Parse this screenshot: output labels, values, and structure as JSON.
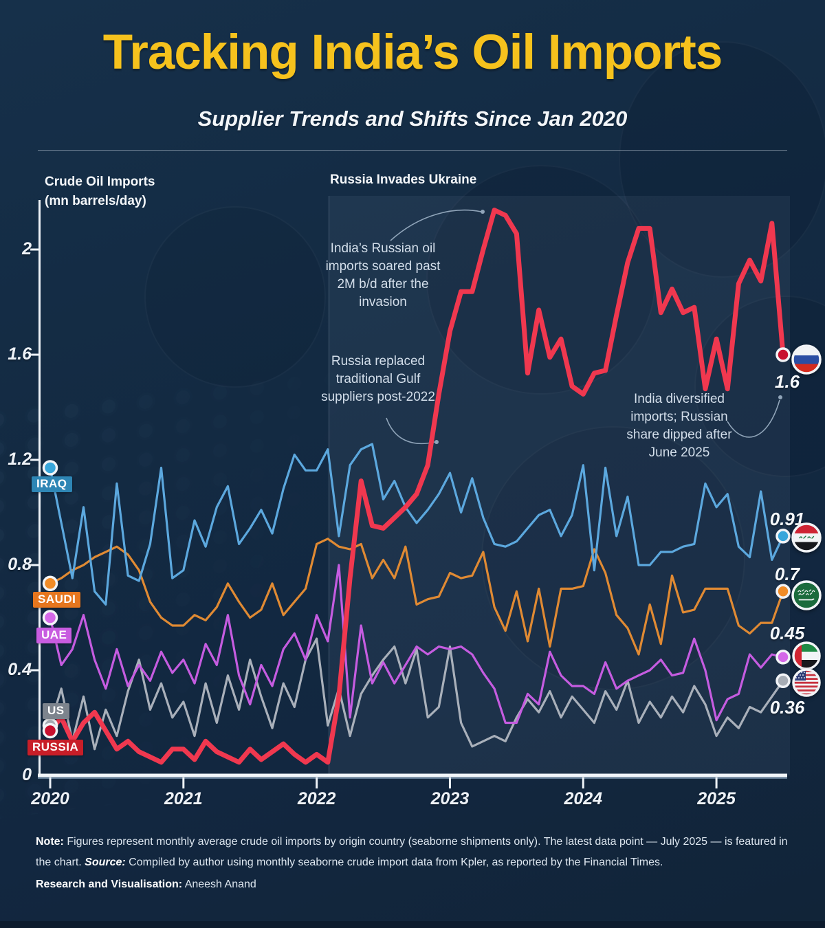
{
  "header": {
    "title": "Tracking India’s Oil Imports",
    "subtitle": "Supplier Trends and Shifts Since Jan 2020"
  },
  "chart": {
    "axis_title": "Crude Oil Imports\n(mn barrels/day)",
    "event_label": "Russia Invades Ukraine",
    "y_ticks": [
      {
        "label": "2",
        "value": 2.0
      },
      {
        "label": "1.6",
        "value": 1.6
      },
      {
        "label": "1.2",
        "value": 1.2
      },
      {
        "label": "0.8",
        "value": 0.8
      },
      {
        "label": "0.4",
        "value": 0.4
      },
      {
        "label": "0",
        "value": 0.0
      }
    ],
    "x_ticks": [
      "2020",
      "2021",
      "2022",
      "2023",
      "2024",
      "2025"
    ]
  },
  "annotations": {
    "invasion": "India’s Russian oil\nimports soared past\n2M b/d after the\ninvasion",
    "gulf": "Russia replaced\ntraditional Gulf\nsuppliers post-2022",
    "diversified": "India diversified\nimports; Russian\nshare dipped after\nJune 2025"
  },
  "colors": {
    "background": "#132A42",
    "panel_tint": "rgba(190,214,245,0.065)",
    "title_yellow": "#F6C21D",
    "axis_white": "#F2F6FA"
  },
  "chart_data": {
    "type": "line",
    "title": "Crude Oil Imports (mn barrels/day)",
    "x_unit": "month",
    "x_start": "2020-01",
    "x_end": "2025-07",
    "x_tick_years": [
      2020,
      2021,
      2022,
      2023,
      2024,
      2025
    ],
    "ylim": [
      0,
      2.2
    ],
    "grid": false,
    "legend_position": "inline-left-badges",
    "series": [
      {
        "name": "US",
        "badge_label": "US",
        "end_label": "0.36",
        "color": "#A9B0BA",
        "badge_bg": "#7D848D",
        "dot_color": "#A7ADB5",
        "flag": "us-flag-icon",
        "values": [
          0.19,
          0.33,
          0.13,
          0.3,
          0.1,
          0.25,
          0.15,
          0.32,
          0.44,
          0.25,
          0.35,
          0.22,
          0.28,
          0.15,
          0.35,
          0.2,
          0.38,
          0.25,
          0.44,
          0.3,
          0.18,
          0.35,
          0.26,
          0.44,
          0.52,
          0.19,
          0.33,
          0.15,
          0.31,
          0.38,
          0.44,
          0.49,
          0.35,
          0.48,
          0.22,
          0.26,
          0.49,
          0.2,
          0.11,
          0.13,
          0.15,
          0.13,
          0.22,
          0.29,
          0.24,
          0.32,
          0.22,
          0.3,
          0.25,
          0.2,
          0.32,
          0.25,
          0.36,
          0.2,
          0.28,
          0.22,
          0.3,
          0.24,
          0.34,
          0.27,
          0.15,
          0.22,
          0.18,
          0.26,
          0.24,
          0.3,
          0.36
        ]
      },
      {
        "name": "UAE",
        "badge_label": "UAE",
        "end_label": "0.45",
        "color": "#C55CE0",
        "badge_bg": "#C85CE0",
        "dot_color": "#D568E8",
        "flag": "uae-flag-icon",
        "values": [
          0.6,
          0.42,
          0.48,
          0.61,
          0.44,
          0.33,
          0.48,
          0.34,
          0.42,
          0.36,
          0.47,
          0.39,
          0.44,
          0.35,
          0.5,
          0.42,
          0.61,
          0.38,
          0.27,
          0.42,
          0.34,
          0.48,
          0.54,
          0.44,
          0.61,
          0.51,
          0.8,
          0.22,
          0.57,
          0.35,
          0.43,
          0.35,
          0.42,
          0.49,
          0.46,
          0.49,
          0.48,
          0.49,
          0.46,
          0.39,
          0.33,
          0.2,
          0.2,
          0.31,
          0.27,
          0.47,
          0.38,
          0.34,
          0.34,
          0.31,
          0.43,
          0.33,
          0.36,
          0.38,
          0.4,
          0.44,
          0.38,
          0.39,
          0.52,
          0.4,
          0.21,
          0.29,
          0.31,
          0.46,
          0.41,
          0.46,
          0.45
        ]
      },
      {
        "name": "SAUDI",
        "badge_label": "SAUDI",
        "end_label": "0.7",
        "color": "#E08A33",
        "badge_bg": "#E6761E",
        "dot_color": "#F18C27",
        "flag": "saudi-flag-icon",
        "values": [
          0.73,
          0.75,
          0.78,
          0.8,
          0.83,
          0.85,
          0.87,
          0.84,
          0.78,
          0.66,
          0.6,
          0.57,
          0.57,
          0.61,
          0.59,
          0.64,
          0.73,
          0.66,
          0.6,
          0.63,
          0.73,
          0.61,
          0.66,
          0.71,
          0.88,
          0.9,
          0.87,
          0.86,
          0.88,
          0.75,
          0.82,
          0.75,
          0.87,
          0.65,
          0.67,
          0.68,
          0.77,
          0.75,
          0.76,
          0.85,
          0.64,
          0.55,
          0.7,
          0.51,
          0.71,
          0.49,
          0.71,
          0.71,
          0.72,
          0.86,
          0.77,
          0.61,
          0.56,
          0.46,
          0.65,
          0.5,
          0.76,
          0.62,
          0.63,
          0.71,
          0.71,
          0.71,
          0.57,
          0.54,
          0.58,
          0.58,
          0.7
        ]
      },
      {
        "name": "IRAQ",
        "badge_label": "IRAQ",
        "end_label": "0.91",
        "color": "#5CA8DE",
        "badge_bg": "#2E86B5",
        "dot_color": "#38A6DB",
        "flag": "iraq-flag-icon",
        "values": [
          1.17,
          0.96,
          0.75,
          1.02,
          0.7,
          0.65,
          1.11,
          0.76,
          0.74,
          0.88,
          1.17,
          0.75,
          0.78,
          0.97,
          0.87,
          1.02,
          1.1,
          0.88,
          0.94,
          1.01,
          0.92,
          1.09,
          1.22,
          1.16,
          1.16,
          1.24,
          0.91,
          1.18,
          1.24,
          1.26,
          1.05,
          1.12,
          1.02,
          0.96,
          1.01,
          1.07,
          1.15,
          1.0,
          1.13,
          0.98,
          0.88,
          0.87,
          0.89,
          0.94,
          0.99,
          1.01,
          0.91,
          0.99,
          1.18,
          0.78,
          1.17,
          0.91,
          1.06,
          0.8,
          0.8,
          0.85,
          0.85,
          0.87,
          0.88,
          1.11,
          1.02,
          1.07,
          0.87,
          0.83,
          1.08,
          0.82,
          0.91
        ]
      },
      {
        "name": "RUSSIA",
        "badge_label": "RUSSIA",
        "end_label": "1.6",
        "color": "#F0384F",
        "badge_bg": "#C81E28",
        "dot_color": "#C8102E",
        "flag": "russia-flag-icon",
        "values": [
          0.17,
          0.22,
          0.13,
          0.2,
          0.24,
          0.17,
          0.1,
          0.13,
          0.09,
          0.07,
          0.05,
          0.1,
          0.1,
          0.06,
          0.13,
          0.09,
          0.07,
          0.05,
          0.1,
          0.06,
          0.09,
          0.12,
          0.08,
          0.05,
          0.08,
          0.05,
          0.3,
          0.75,
          1.12,
          0.95,
          0.94,
          0.98,
          1.02,
          1.07,
          1.18,
          1.45,
          1.69,
          1.84,
          1.84,
          2.0,
          2.15,
          2.13,
          2.06,
          1.53,
          1.77,
          1.59,
          1.66,
          1.48,
          1.45,
          1.53,
          1.54,
          1.75,
          1.95,
          2.08,
          2.08,
          1.76,
          1.85,
          1.76,
          1.78,
          1.47,
          1.66,
          1.47,
          1.87,
          1.96,
          1.88,
          2.1,
          1.6
        ]
      }
    ]
  },
  "footer": {
    "note_parts": [
      {
        "style": "b",
        "text": "Note:"
      },
      {
        "style": "n",
        "text": " Figures represent monthly average crude oil imports by origin country (seaborne shipments only). The latest data point — July 2025 — is featured in the chart. "
      },
      {
        "style": "bi",
        "text": "Source:"
      },
      {
        "style": "n",
        "text": " Compiled by author using monthly seaborne crude import data from Kpler, as reported by the Financial Times."
      }
    ],
    "credit_parts": [
      {
        "style": "b",
        "text": "Research and Visualisation:"
      },
      {
        "style": "n",
        "text": " Aneesh Anand"
      }
    ]
  }
}
